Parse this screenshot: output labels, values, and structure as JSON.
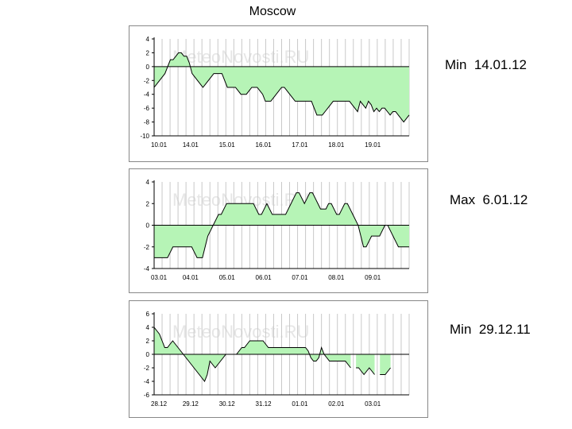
{
  "title": "Moscow",
  "watermark": "MeteoNovosti.RU",
  "colors": {
    "fill": "#b6f4b6",
    "grid": "#c8c8c8",
    "line": "#000000",
    "zero": "#000000"
  },
  "side_labels": [
    "Min  14.01.12",
    "Max  6.01.12",
    "Min  29.12.11"
  ],
  "chart_data": [
    {
      "type": "area",
      "title": "",
      "xlabel": "",
      "ylabel": "",
      "ylim": [
        -10,
        4
      ],
      "yticks": [
        4,
        2,
        0,
        -2,
        -4,
        -6,
        -8,
        -10
      ],
      "xticks": [
        "10.01",
        "14.01",
        "15.01",
        "16.01",
        "17.01",
        "18.01",
        "19.01"
      ],
      "values": [
        -3,
        -2.5,
        -2,
        -1.5,
        -1,
        0,
        1,
        1,
        1.5,
        2,
        2,
        1.5,
        1.5,
        0.5,
        -1,
        -1.5,
        -2,
        -2.5,
        -3,
        -2.5,
        -2,
        -1.5,
        -1,
        -1,
        -1,
        -1,
        -2,
        -3,
        -3,
        -3,
        -3,
        -3.5,
        -4,
        -4,
        -4,
        -3.5,
        -3,
        -3,
        -3,
        -3.5,
        -4,
        -5,
        -5,
        -5,
        -4.5,
        -4,
        -3.5,
        -3,
        -3,
        -3.5,
        -4,
        -4.5,
        -5,
        -5,
        -5,
        -5,
        -5,
        -5,
        -5,
        -6,
        -7,
        -7,
        -7,
        -6.5,
        -6,
        -5.5,
        -5,
        -5,
        -5,
        -5,
        -5,
        -5,
        -5,
        -5.5,
        -6,
        -6.5,
        -5,
        -5.5,
        -6,
        -5,
        -5.5,
        -6.5,
        -6,
        -6.5,
        -6,
        -6,
        -6.5,
        -7,
        -6.5,
        -6.5,
        -7,
        -7.5,
        -8,
        -7.5,
        -7
      ]
    },
    {
      "type": "area",
      "title": "",
      "xlabel": "",
      "ylabel": "",
      "ylim": [
        -4,
        4
      ],
      "yticks": [
        4,
        2,
        0,
        -2,
        -4
      ],
      "xticks": [
        "03.01",
        "04.01",
        "05.01",
        "06.01",
        "07.01",
        "08.01",
        "09.01"
      ],
      "values": [
        -3,
        -3,
        -3,
        -3,
        -3,
        -3,
        -2.5,
        -2,
        -2,
        -2,
        -2,
        -2,
        -2,
        -2,
        -2,
        -2.5,
        -3,
        -3,
        -3,
        -2,
        -1,
        -0.5,
        0,
        0.5,
        1,
        1,
        1.5,
        2,
        2,
        2,
        2,
        2,
        2,
        2,
        2,
        2,
        2,
        2,
        1.5,
        1,
        1,
        1.5,
        2,
        1.5,
        1,
        1,
        1,
        1,
        1,
        1,
        1.5,
        2,
        2.5,
        3,
        3,
        2.5,
        2,
        2.5,
        3,
        3,
        2.5,
        2,
        1.5,
        1.5,
        1.5,
        2,
        2,
        1.5,
        1,
        1,
        1.5,
        2,
        2,
        1.5,
        1,
        0.5,
        0,
        -1,
        -2,
        -2,
        -1.5,
        -1,
        -1,
        -1,
        -1,
        -0.5,
        0,
        0,
        -0.5,
        -1,
        -1.5,
        -2,
        -2,
        -2,
        -2,
        -2
      ]
    },
    {
      "type": "area",
      "title": "",
      "xlabel": "",
      "ylabel": "",
      "ylim": [
        -6,
        6
      ],
      "yticks": [
        6,
        4,
        2,
        0,
        -2,
        -4,
        -6
      ],
      "xticks": [
        "28.12",
        "29.12",
        "30.12",
        "31.12",
        "01.01",
        "02.01",
        "03.01"
      ],
      "values": [
        4,
        3.5,
        3,
        2,
        1,
        1,
        1.5,
        2,
        1.5,
        1,
        0.5,
        0,
        -0.5,
        -1,
        -1.5,
        -2,
        -2.5,
        -3,
        -3.5,
        -4,
        -3,
        -1,
        -1.5,
        -2,
        -1.5,
        -1,
        -0.5,
        0,
        0,
        0,
        0,
        0,
        0.5,
        1,
        1,
        1.5,
        2,
        2,
        2,
        2,
        2,
        2,
        1.5,
        1,
        1,
        1,
        1,
        1,
        1,
        1,
        1,
        1,
        1,
        1,
        1,
        1,
        1,
        1,
        0.5,
        -0.5,
        -1,
        -1,
        -0.5,
        1,
        0,
        -0.5,
        -1,
        -1,
        -1,
        -1,
        -1,
        -1,
        -1,
        -1.5,
        -2,
        null,
        -2,
        -2,
        -2.5,
        -3,
        -2.5,
        -2,
        -2.5,
        -3,
        null,
        -3,
        -3,
        -3,
        -2.5,
        -2,
        null,
        null,
        null,
        null,
        null,
        null,
        null
      ]
    }
  ]
}
